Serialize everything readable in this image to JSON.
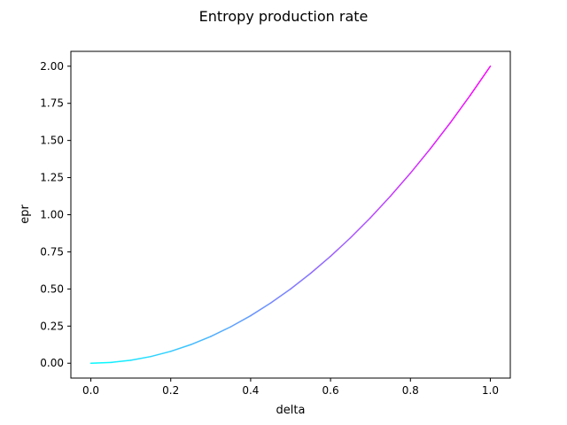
{
  "chart_data": {
    "type": "line",
    "title": "Entropy production rate",
    "xlabel": "delta",
    "ylabel": "epr",
    "xlim": [
      -0.05,
      1.05
    ],
    "ylim": [
      -0.1,
      2.1
    ],
    "xticks": [
      0.0,
      0.2,
      0.4,
      0.6,
      0.8,
      1.0
    ],
    "xtick_labels": [
      "0.0",
      "0.2",
      "0.4",
      "0.6",
      "0.8",
      "1.0"
    ],
    "yticks": [
      0.0,
      0.25,
      0.5,
      0.75,
      1.0,
      1.25,
      1.5,
      1.75,
      2.0
    ],
    "ytick_labels": [
      "0.00",
      "0.25",
      "0.50",
      "0.75",
      "1.00",
      "1.25",
      "1.50",
      "1.75",
      "2.00"
    ],
    "grid": false,
    "colormap": "cool",
    "color_start": "#00ffff",
    "color_end": "#ff00ff",
    "series": [
      {
        "x": [
          0.0,
          0.05,
          0.1,
          0.15,
          0.2,
          0.25,
          0.3,
          0.35,
          0.4,
          0.45,
          0.5,
          0.55,
          0.6,
          0.65,
          0.7,
          0.75,
          0.8,
          0.85,
          0.9,
          0.95,
          1.0
        ],
        "y": [
          0.0,
          0.005,
          0.02,
          0.045,
          0.08,
          0.125,
          0.18,
          0.245,
          0.32,
          0.405,
          0.5,
          0.605,
          0.72,
          0.845,
          0.98,
          1.125,
          1.28,
          1.445,
          1.62,
          1.805,
          2.0
        ]
      }
    ]
  }
}
